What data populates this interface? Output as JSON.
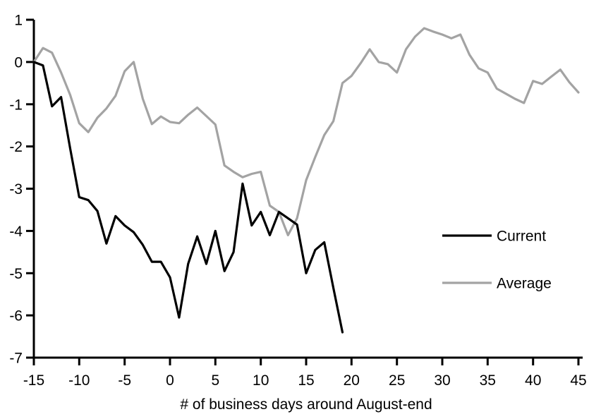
{
  "chart_data": {
    "type": "line",
    "title": "",
    "xlabel": "# of business days around August-end",
    "ylabel": "",
    "xlim": [
      -15,
      45
    ],
    "ylim": [
      -7,
      1
    ],
    "x_ticks": [
      -15,
      -10,
      -5,
      0,
      5,
      10,
      15,
      20,
      25,
      30,
      35,
      40,
      45
    ],
    "y_ticks": [
      1,
      0,
      -1,
      -2,
      -3,
      -4,
      -5,
      -6,
      -7
    ],
    "grid": false,
    "legend_position": "right-middle",
    "background_color": "#ffffff",
    "axis_color": "#000000",
    "series": [
      {
        "name": "Current",
        "color": "#000000",
        "x": [
          -15,
          -14,
          -13,
          -12,
          -11,
          -10,
          -9,
          -8,
          -7,
          -6,
          -5,
          -4,
          -3,
          -2,
          -1,
          0,
          1,
          2,
          3,
          4,
          5,
          6,
          7,
          8,
          9,
          10,
          11,
          12,
          13,
          14,
          15,
          16,
          17,
          18,
          19
        ],
        "values": [
          0.0,
          -0.08,
          -1.05,
          -0.83,
          -2.05,
          -3.2,
          -3.27,
          -3.53,
          -4.3,
          -3.65,
          -3.87,
          -4.03,
          -4.33,
          -4.73,
          -4.73,
          -5.1,
          -6.05,
          -4.78,
          -4.13,
          -4.78,
          -4.0,
          -4.95,
          -4.5,
          -2.88,
          -3.87,
          -3.55,
          -4.1,
          -3.55,
          -3.7,
          -3.85,
          -5.0,
          -4.45,
          -4.27,
          -5.35,
          -6.4
        ]
      },
      {
        "name": "Average",
        "color": "#A3A3A3",
        "x": [
          -15,
          -14,
          -13,
          -12,
          -11,
          -10,
          -9,
          -8,
          -7,
          -6,
          -5,
          -4,
          -3,
          -2,
          -1,
          0,
          1,
          2,
          3,
          4,
          5,
          6,
          7,
          8,
          9,
          10,
          11,
          12,
          13,
          14,
          15,
          16,
          17,
          18,
          19,
          20,
          21,
          22,
          23,
          24,
          25,
          26,
          27,
          28,
          29,
          30,
          31,
          32,
          33,
          34,
          35,
          36,
          37,
          38,
          39,
          40,
          41,
          42,
          43,
          44,
          45
        ],
        "values": [
          0.0,
          0.33,
          0.22,
          -0.25,
          -0.78,
          -1.45,
          -1.66,
          -1.32,
          -1.1,
          -0.8,
          -0.22,
          0.0,
          -0.87,
          -1.47,
          -1.29,
          -1.42,
          -1.45,
          -1.25,
          -1.08,
          -1.28,
          -1.48,
          -2.45,
          -2.6,
          -2.73,
          -2.65,
          -2.6,
          -3.4,
          -3.55,
          -4.1,
          -3.7,
          -2.8,
          -2.25,
          -1.73,
          -1.4,
          -0.5,
          -0.33,
          -0.03,
          0.3,
          0.0,
          -0.05,
          -0.25,
          0.3,
          0.6,
          0.8,
          0.72,
          0.65,
          0.56,
          0.65,
          0.17,
          -0.15,
          -0.25,
          -0.63,
          -0.75,
          -0.87,
          -0.97,
          -0.45,
          -0.52,
          -0.35,
          -0.18,
          -0.48,
          -0.72
        ]
      }
    ]
  }
}
